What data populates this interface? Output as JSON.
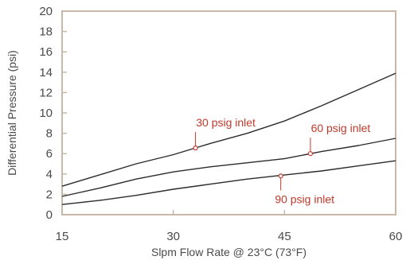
{
  "chart_data": {
    "type": "line",
    "title": "",
    "xlabel": "Slpm Flow Rate @ 23°C (73°F)",
    "ylabel": "Differential Pressure (psi)",
    "xlim": [
      15,
      60
    ],
    "ylim": [
      0,
      20
    ],
    "xticks": [
      "15",
      "30",
      "45",
      "60"
    ],
    "yticks": [
      "0",
      "2",
      "4",
      "6",
      "8",
      "10",
      "12",
      "14",
      "16",
      "18",
      "20"
    ],
    "grid": false,
    "colors": {
      "axis": "#c8b8a8",
      "line": "#2b2b2b",
      "annotation": "#c0392b",
      "text": "#4a4a4a"
    },
    "series": [
      {
        "points": [
          [
            15,
            2.8
          ],
          [
            20,
            3.9
          ],
          [
            25,
            5.0
          ],
          [
            30,
            5.9
          ],
          [
            35,
            7.0
          ],
          [
            40,
            8.0
          ],
          [
            45,
            9.2
          ],
          [
            50,
            10.7
          ],
          [
            55,
            12.3
          ],
          [
            60,
            13.9
          ]
        ]
      },
      {
        "points": [
          [
            15,
            1.8
          ],
          [
            20,
            2.6
          ],
          [
            25,
            3.5
          ],
          [
            30,
            4.2
          ],
          [
            35,
            4.7
          ],
          [
            40,
            5.1
          ],
          [
            45,
            5.5
          ],
          [
            50,
            6.2
          ],
          [
            55,
            6.8
          ],
          [
            60,
            7.5
          ]
        ]
      },
      {
        "points": [
          [
            15,
            1.0
          ],
          [
            20,
            1.4
          ],
          [
            25,
            1.9
          ],
          [
            30,
            2.5
          ],
          [
            35,
            3.0
          ],
          [
            40,
            3.5
          ],
          [
            45,
            3.9
          ],
          [
            50,
            4.3
          ],
          [
            55,
            4.8
          ],
          [
            60,
            5.3
          ]
        ]
      }
    ],
    "annotations": [
      {
        "text": "30 psig inlet",
        "series": 0,
        "x": 33,
        "y": 6.55
      },
      {
        "text": "60 psig inlet",
        "series": 1,
        "x": 48.5,
        "y": 6.0
      },
      {
        "text": "90 psig inlet",
        "series": 2,
        "x": 44.5,
        "y": 3.8
      }
    ]
  }
}
